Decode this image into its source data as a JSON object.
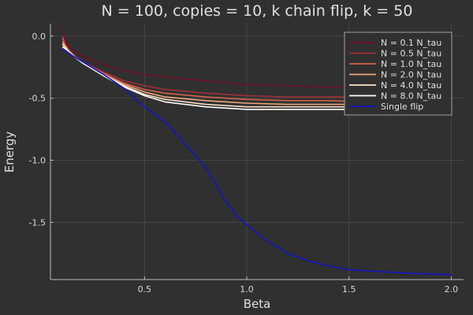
{
  "chart_data": {
    "type": "line",
    "title": "N = 100, copies = 10, k chain flip, k = 50",
    "xlabel": "Beta",
    "ylabel": "Energy",
    "xlim": [
      0.04,
      2.06
    ],
    "ylim": [
      -1.96,
      0.1
    ],
    "x_ticks": [
      0.5,
      1.0,
      1.5,
      2.0
    ],
    "x_tick_labels": [
      "0.5",
      "1.0",
      "1.5",
      "2.0"
    ],
    "y_ticks": [
      0.0,
      -0.5,
      -1.0,
      -1.5
    ],
    "y_tick_labels": [
      "0.0",
      "-0.5",
      "-1.0",
      "-1.5"
    ],
    "grid": true,
    "legend_position": "top-right",
    "background": "#303030",
    "series": [
      {
        "name": "N = 0.1 N_tau",
        "color": "#6b0f22",
        "x": [
          0.1,
          0.11,
          0.13,
          0.16,
          0.2,
          0.3,
          0.4,
          0.5,
          0.6,
          0.8,
          1.0,
          1.2,
          1.4,
          1.6,
          1.8,
          2.0
        ],
        "y": [
          0.05,
          -0.04,
          -0.08,
          -0.12,
          -0.16,
          -0.23,
          -0.28,
          -0.31,
          -0.33,
          -0.36,
          -0.39,
          -0.4,
          -0.41,
          -0.42,
          -0.42,
          -0.43
        ]
      },
      {
        "name": "N = 0.5 N_tau",
        "color": "#a1303a",
        "x": [
          0.1,
          0.11,
          0.13,
          0.16,
          0.2,
          0.3,
          0.4,
          0.5,
          0.6,
          0.8,
          1.0,
          1.2,
          1.4,
          1.6,
          1.8,
          2.0
        ],
        "y": [
          0.0,
          -0.06,
          -0.11,
          -0.16,
          -0.21,
          -0.29,
          -0.36,
          -0.4,
          -0.43,
          -0.46,
          -0.48,
          -0.49,
          -0.49,
          -0.49,
          -0.49,
          -0.5
        ]
      },
      {
        "name": "N = 1.0 N_tau",
        "color": "#d0634a",
        "x": [
          0.1,
          0.11,
          0.13,
          0.16,
          0.2,
          0.3,
          0.4,
          0.5,
          0.6,
          0.8,
          1.0,
          1.2,
          1.4,
          1.6,
          1.8,
          2.0
        ],
        "y": [
          -0.02,
          -0.07,
          -0.12,
          -0.17,
          -0.22,
          -0.3,
          -0.38,
          -0.43,
          -0.46,
          -0.49,
          -0.51,
          -0.52,
          -0.52,
          -0.53,
          -0.53,
          -0.53
        ]
      },
      {
        "name": "N = 2.0 N_tau",
        "color": "#f0a877",
        "x": [
          0.1,
          0.11,
          0.13,
          0.16,
          0.2,
          0.3,
          0.4,
          0.5,
          0.6,
          0.8,
          1.0,
          1.2,
          1.4,
          1.6,
          1.8,
          2.0
        ],
        "y": [
          -0.05,
          -0.08,
          -0.12,
          -0.17,
          -0.22,
          -0.31,
          -0.39,
          -0.45,
          -0.49,
          -0.52,
          -0.54,
          -0.55,
          -0.55,
          -0.55,
          -0.55,
          -0.55
        ]
      },
      {
        "name": "N = 4.0 N_tau",
        "color": "#fce0c8",
        "x": [
          0.1,
          0.11,
          0.13,
          0.16,
          0.2,
          0.3,
          0.4,
          0.5,
          0.6,
          0.8,
          1.0,
          1.2,
          1.4,
          1.6,
          1.8,
          2.0
        ],
        "y": [
          -0.07,
          -0.09,
          -0.13,
          -0.17,
          -0.22,
          -0.31,
          -0.4,
          -0.47,
          -0.51,
          -0.55,
          -0.57,
          -0.57,
          -0.57,
          -0.57,
          -0.58,
          -0.58
        ]
      },
      {
        "name": "N = 8.0 N_tau",
        "color": "#ffffff",
        "x": [
          0.1,
          0.11,
          0.13,
          0.16,
          0.2,
          0.3,
          0.4,
          0.5,
          0.6,
          0.8,
          1.0,
          1.2,
          1.4,
          1.6,
          1.8,
          2.0
        ],
        "y": [
          -0.09,
          -0.1,
          -0.13,
          -0.17,
          -0.22,
          -0.32,
          -0.41,
          -0.48,
          -0.53,
          -0.57,
          -0.59,
          -0.59,
          -0.59,
          -0.59,
          -0.59,
          -0.59
        ]
      },
      {
        "name": "Single flip",
        "color": "#1414c8",
        "x": [
          0.1,
          0.15,
          0.2,
          0.3,
          0.4,
          0.5,
          0.6,
          0.7,
          0.8,
          0.85,
          0.9,
          0.95,
          1.0,
          1.1,
          1.2,
          1.3,
          1.4,
          1.5,
          1.6,
          1.8,
          2.0
        ],
        "y": [
          -0.1,
          -0.16,
          -0.21,
          -0.31,
          -0.42,
          -0.57,
          -0.69,
          -0.87,
          -1.06,
          -1.2,
          -1.34,
          -1.45,
          -1.52,
          -1.65,
          -1.75,
          -1.81,
          -1.85,
          -1.88,
          -1.89,
          -1.91,
          -1.92
        ]
      }
    ]
  }
}
